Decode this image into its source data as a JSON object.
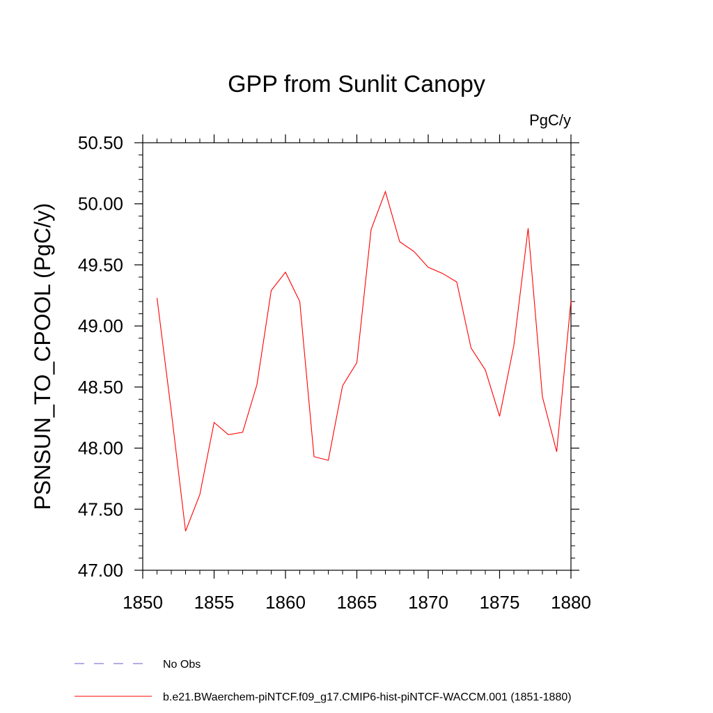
{
  "chart_data": {
    "type": "line",
    "title": "GPP from Sunlit Canopy",
    "units_label": "PgC/y",
    "ylabel": "PSNSUN_TO_CPOOL  (PgC/y)",
    "xlabel": "",
    "xlim": [
      1850,
      1880
    ],
    "ylim": [
      47.0,
      50.5
    ],
    "x_ticks": [
      1850,
      1855,
      1860,
      1865,
      1870,
      1875,
      1880
    ],
    "x_tick_labels": [
      "1850",
      "1855",
      "1860",
      "1865",
      "1870",
      "1875",
      "1880"
    ],
    "y_ticks": [
      47.0,
      47.5,
      48.0,
      48.5,
      49.0,
      49.5,
      50.0,
      50.5
    ],
    "y_tick_labels": [
      "47.00",
      "47.50",
      "48.00",
      "48.50",
      "49.00",
      "49.50",
      "50.00",
      "50.50"
    ],
    "grid": false,
    "legend_position": "bottom",
    "series": [
      {
        "name": "b.e21.BWaerchem-piNTCF.f09_g17.CMIP6-hist-piNTCF-WACCM.001 (1851-1880)",
        "color": "#ff0000",
        "style": "solid",
        "x": [
          1851,
          1852,
          1853,
          1854,
          1855,
          1856,
          1857,
          1858,
          1859,
          1860,
          1861,
          1862,
          1863,
          1864,
          1865,
          1866,
          1867,
          1868,
          1869,
          1870,
          1871,
          1872,
          1873,
          1874,
          1875,
          1876,
          1877,
          1878,
          1879,
          1880
        ],
        "y": [
          49.23,
          48.3,
          47.32,
          47.62,
          48.21,
          48.11,
          48.13,
          48.52,
          49.29,
          49.44,
          49.2,
          47.93,
          47.9,
          48.51,
          48.7,
          49.79,
          50.1,
          49.69,
          49.61,
          49.48,
          49.43,
          49.36,
          48.82,
          48.64,
          48.26,
          48.84,
          49.8,
          48.42,
          47.97,
          49.21
        ]
      }
    ],
    "legend": [
      {
        "label": "No Obs",
        "color": "#6a5acd",
        "style": "dashed"
      },
      {
        "label": "b.e21.BWaerchem-piNTCF.f09_g17.CMIP6-hist-piNTCF-WACCM.001 (1851-1880)",
        "color": "#ff0000",
        "style": "solid"
      }
    ]
  }
}
